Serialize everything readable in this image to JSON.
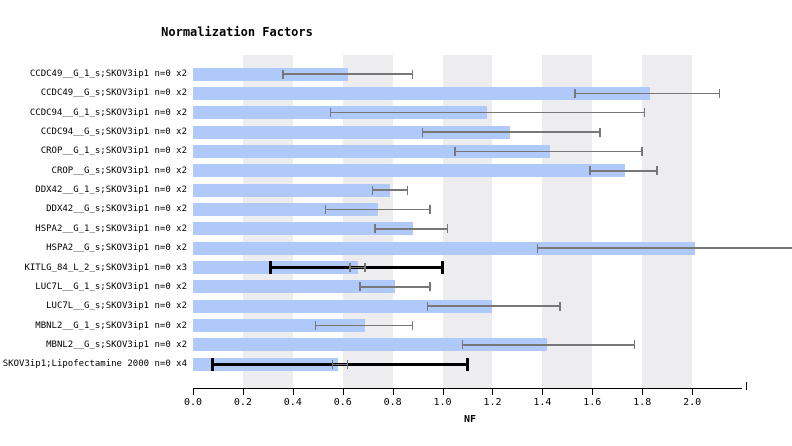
{
  "title": "Normalization Factors",
  "colors": {
    "bar": "#aec9fa",
    "band": "#ededef",
    "error": "#777777",
    "error_bold": "#000000",
    "text": "#000000",
    "background": "#ffffff"
  },
  "chart_data": {
    "type": "bar",
    "orientation": "horizontal",
    "title": "Normalization Factors",
    "xlabel": "NF",
    "xlim": [
      0,
      2.22
    ],
    "xtick_values": [
      0.0,
      0.2,
      0.4,
      0.6,
      0.8,
      1.0,
      1.2,
      1.4,
      1.6,
      1.8,
      2.0
    ],
    "xtick_labels": [
      "0.0",
      "0.2",
      "0.4",
      "0.6",
      "0.8",
      "1.0",
      "1.2",
      "1.4",
      "1.6",
      "1.8",
      "2.0"
    ],
    "grid_bands": [
      [
        0.2,
        0.4
      ],
      [
        0.6,
        0.8
      ],
      [
        1.0,
        1.2
      ],
      [
        1.4,
        1.6
      ],
      [
        1.8,
        2.0
      ]
    ],
    "legend": null,
    "rows": [
      {
        "label": "CCDC49__G_1_s;SKOV3ip1 n=0 x2",
        "nf": 0.62,
        "err_lo": 0.36,
        "err_hi": 0.88
      },
      {
        "label": "CCDC49__G_s;SKOV3ip1 n=0 x2",
        "nf": 1.83,
        "err_lo": 1.53,
        "err_hi": 2.11
      },
      {
        "label": "CCDC94__G_1_s;SKOV3ip1 n=0 x2",
        "nf": 1.18,
        "err_lo": 0.55,
        "err_hi": 1.81
      },
      {
        "label": "CCDC94__G_s;SKOV3ip1 n=0 x2",
        "nf": 1.27,
        "err_lo": 0.92,
        "err_hi": 1.63
      },
      {
        "label": "CROP__G_1_s;SKOV3ip1 n=0 x2",
        "nf": 1.43,
        "err_lo": 1.05,
        "err_hi": 1.8
      },
      {
        "label": "CROP__G_s;SKOV3ip1 n=0 x2",
        "nf": 1.73,
        "err_lo": 1.59,
        "err_hi": 1.86
      },
      {
        "label": "DDX42__G_1_s;SKOV3ip1 n=0 x2",
        "nf": 0.79,
        "err_lo": 0.72,
        "err_hi": 0.86
      },
      {
        "label": "DDX42__G_s;SKOV3ip1 n=0 x2",
        "nf": 0.74,
        "err_lo": 0.53,
        "err_hi": 0.95
      },
      {
        "label": "HSPA2__G_1_s;SKOV3ip1 n=0 x2",
        "nf": 0.88,
        "err_lo": 0.73,
        "err_hi": 1.02
      },
      {
        "label": "HSPA2__G_s;SKOV3ip1 n=0 x2",
        "nf": 2.01,
        "err_lo": 1.38,
        "err_hi": 2.4,
        "err_clipped": true
      },
      {
        "label": "KITLG_84_L_2_s;SKOV3ip1 n=0 x3",
        "nf": 0.66,
        "err_lo": 0.63,
        "err_hi": 0.69,
        "bold_lo": 0.31,
        "bold_hi": 1.0
      },
      {
        "label": "LUC7L__G_1_s;SKOV3ip1 n=0 x2",
        "nf": 0.81,
        "err_lo": 0.67,
        "err_hi": 0.95
      },
      {
        "label": "LUC7L__G_s;SKOV3ip1 n=0 x2",
        "nf": 1.2,
        "err_lo": 0.94,
        "err_hi": 1.47
      },
      {
        "label": "MBNL2__G_1_s;SKOV3ip1 n=0 x2",
        "nf": 0.69,
        "err_lo": 0.49,
        "err_hi": 0.88
      },
      {
        "label": "MBNL2__G_s;SKOV3ip1 n=0 x2",
        "nf": 1.42,
        "err_lo": 1.08,
        "err_hi": 1.77
      },
      {
        "label": "SKOV3ip1;Lipofectamine 2000 n=0 x4",
        "nf": 0.58,
        "err_lo": 0.56,
        "err_hi": 0.62,
        "bold_lo": 0.08,
        "bold_hi": 1.1
      }
    ]
  }
}
